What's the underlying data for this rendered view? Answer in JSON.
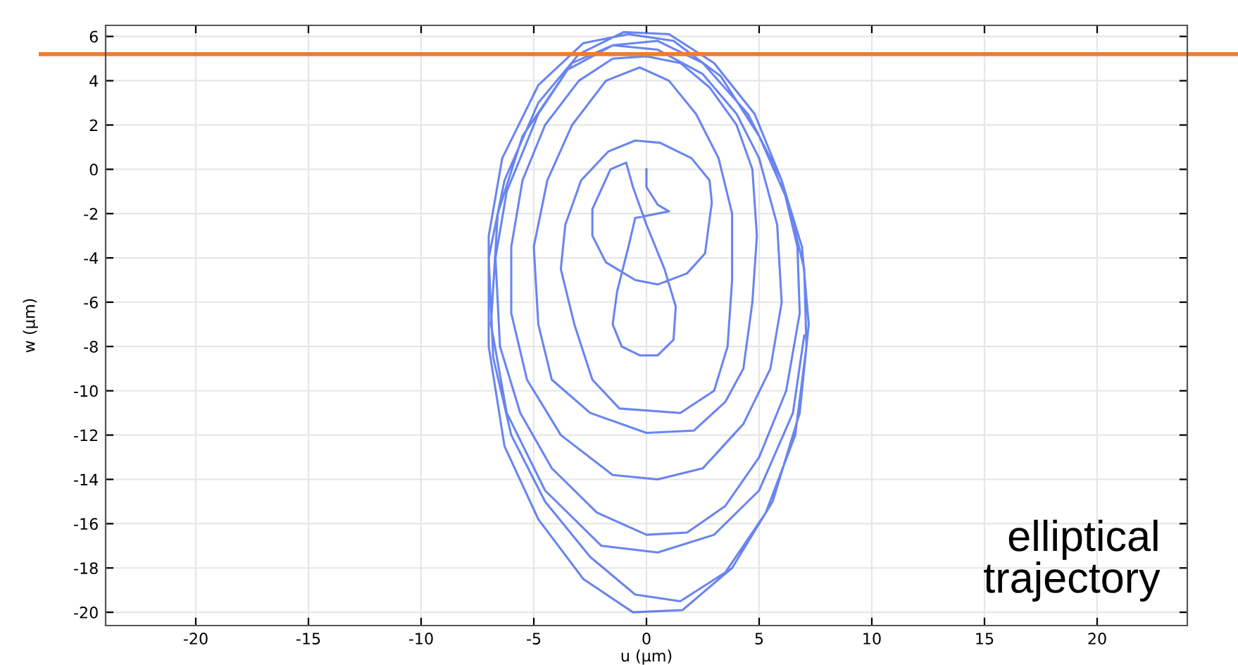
{
  "chart_data": {
    "type": "line",
    "xlabel": "u (µm)",
    "ylabel": "w (µm)",
    "xlim": [
      -24,
      24
    ],
    "ylim": [
      -20.6,
      6.5
    ],
    "xticks": [
      -20,
      -15,
      -10,
      -5,
      0,
      5,
      10,
      15,
      20
    ],
    "yticks": [
      -20,
      -18,
      -16,
      -14,
      -12,
      -10,
      -8,
      -6,
      -4,
      -2,
      0,
      2,
      4,
      6
    ],
    "grid": true,
    "legend": false,
    "marker": "none",
    "line_style": "solid",
    "ref_lines": [
      {
        "axis": "y",
        "value": 5.2,
        "color": "#ed7d31",
        "line_style": "solid"
      }
    ],
    "annotations": [
      "elliptical\ntrajectory"
    ],
    "series": [
      {
        "color": "#4466ee",
        "x": [
          0,
          0,
          0.5,
          1,
          -0.5,
          -0.8,
          -1.3,
          -1.5,
          -1.1,
          -0.3,
          0.5,
          1.2,
          1.3,
          0.8,
          0,
          -0.6,
          -0.9,
          -1.6,
          -2.4,
          -2.4,
          -1.8,
          -0.5,
          0.5,
          1.8,
          2.6,
          2.9,
          2.8,
          2,
          0.6,
          -0.5,
          -1.7,
          -2.9,
          -3.6,
          -3.8,
          -3.2,
          -2.4,
          -1.2,
          1.5,
          3,
          3.6,
          3.8,
          3.8,
          3.2,
          2.2,
          1,
          -0.3,
          -1.8,
          -3.3,
          -4.4,
          -5,
          -4.8,
          -4.2,
          -2.5,
          0,
          2.1,
          3.5,
          4.3,
          4.7,
          4.9,
          4.7,
          4,
          2.8,
          1.5,
          0,
          -1.5,
          -3,
          -4.5,
          -5.5,
          -6,
          -6,
          -5.3,
          -3.8,
          -1.5,
          0.5,
          2.5,
          4.3,
          5.5,
          6,
          5.8,
          5,
          4,
          2.5,
          0.5,
          -1.5,
          -3.3,
          -4.8,
          -6.2,
          -6.7,
          -6.5,
          -5.6,
          -4.2,
          -2.2,
          0,
          1.8,
          3.5,
          5,
          6.2,
          6.8,
          6.7,
          6,
          4.8,
          3,
          1,
          -1,
          -3,
          -4.8,
          -6.3,
          -7,
          -6.8,
          -6,
          -4.5,
          -2.5,
          -0.5,
          1.5,
          3.5,
          5.3,
          6.6,
          7.1,
          7,
          6.3,
          5,
          3.3,
          1.2,
          -0.8,
          -2.8,
          -4.8,
          -6.4,
          -7,
          -7,
          -6.3,
          -4.8,
          -2.8,
          -0.6,
          1.6,
          3.8,
          5.6,
          6.8,
          7.2,
          6.9,
          6,
          4.5,
          2.5,
          0.5,
          -1.5,
          -3.5,
          -5.5,
          -6.6,
          -6.9,
          -6.2,
          -4.5,
          -2,
          0.5,
          3,
          5,
          6.5,
          7
        ],
        "values": [
          0,
          -0.8,
          -1.6,
          -1.9,
          -2.2,
          -3.5,
          -5.5,
          -7,
          -8,
          -8.4,
          -8.4,
          -7.7,
          -6.2,
          -4.5,
          -2.5,
          -0.8,
          0.3,
          0,
          -1.8,
          -3,
          -4.2,
          -5,
          -5.2,
          -4.7,
          -3.8,
          -1.5,
          -0.5,
          0.5,
          1.2,
          1.3,
          0.8,
          -0.5,
          -2.5,
          -4.5,
          -7,
          -9.5,
          -10.8,
          -11,
          -10,
          -8,
          -5,
          -2,
          0.5,
          2.5,
          4,
          4.6,
          4,
          2,
          -0.5,
          -3.5,
          -7,
          -9.5,
          -11,
          -11.9,
          -11.8,
          -10.5,
          -9,
          -6,
          -3,
          0,
          2,
          3.7,
          4.8,
          5.1,
          5,
          4,
          2,
          -0.5,
          -3.5,
          -6.5,
          -9.5,
          -12,
          -13.8,
          -14,
          -13.5,
          -11.5,
          -9,
          -6,
          -2.5,
          0.5,
          2.5,
          4.3,
          5.4,
          5.6,
          4.8,
          2.5,
          -1,
          -4,
          -8,
          -11,
          -13.5,
          -15.5,
          -16.5,
          -16.4,
          -15.2,
          -13,
          -10,
          -6.5,
          -3.5,
          -0.5,
          2.5,
          4.8,
          6.1,
          6.2,
          5.2,
          3,
          -0.5,
          -4,
          -8.5,
          -12,
          -15,
          -17.5,
          -19.2,
          -19.5,
          -18.2,
          -15.5,
          -12,
          -8,
          -4.5,
          -1.5,
          1.5,
          4.2,
          5.8,
          6.1,
          5.7,
          3.8,
          0.5,
          -3,
          -8,
          -12.5,
          -15.8,
          -18.5,
          -20,
          -19.9,
          -18,
          -15,
          -11,
          -7,
          -3.5,
          -0.5,
          2.5,
          4.8,
          5.8,
          5.6,
          4.5,
          1.5,
          -2,
          -7,
          -11,
          -14.5,
          -17,
          -17.3,
          -16.5,
          -14.5,
          -11,
          -7.5
        ]
      }
    ]
  }
}
